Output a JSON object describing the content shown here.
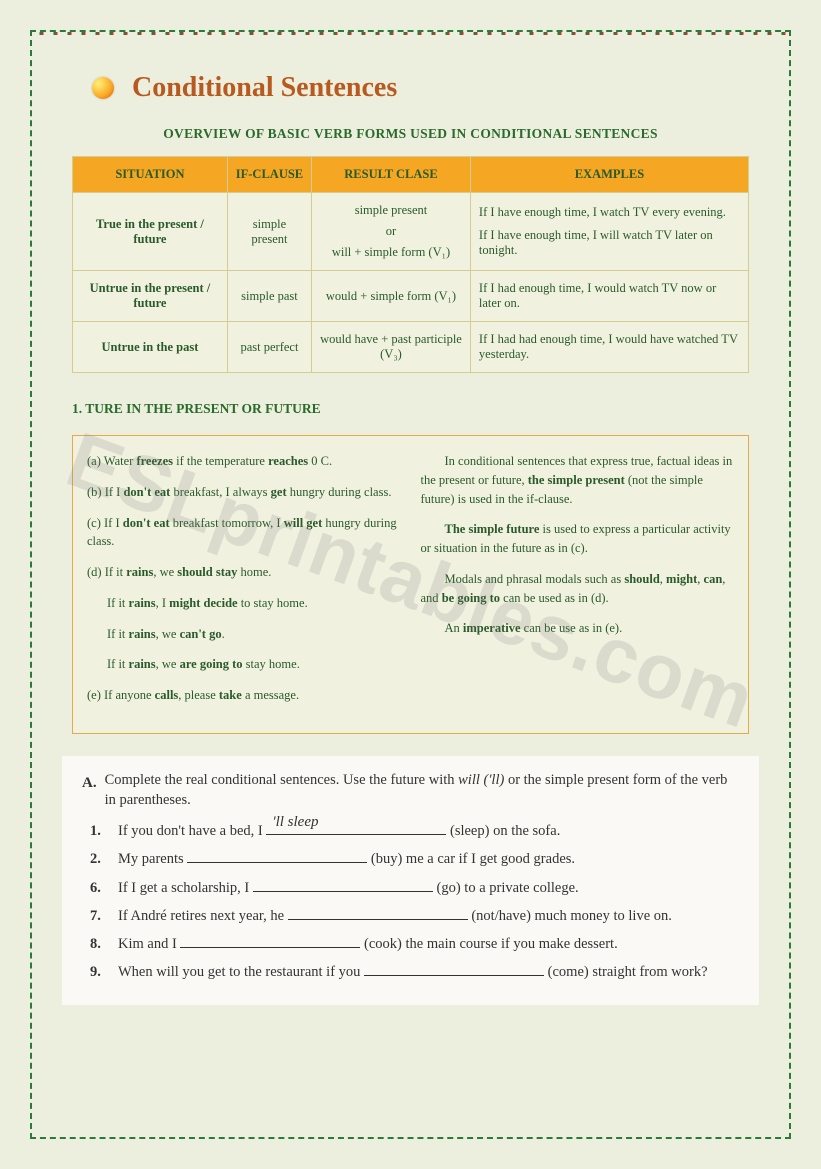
{
  "title": "Conditional Sentences",
  "subtitle": "OVERVIEW OF BASIC VERB FORMS USED IN CONDITIONAL SENTENCES",
  "watermark": "ESLprintables.com",
  "table": {
    "headers": [
      "SITUATION",
      "IF-CLAUSE",
      "RESULT CLASE",
      "EXAMPLES"
    ],
    "rows": [
      {
        "situation": "True in the present / future",
        "ifclause": "simple present",
        "result_a": "simple present",
        "result_or": "or",
        "result_b": "will + simple form (V₁)",
        "example_a": "If I have enough time, I watch TV every evening.",
        "example_b": "If I have enough time, I will watch TV later on tonight."
      },
      {
        "situation": "Untrue in the present / future",
        "ifclause": "simple past",
        "result_a": "would + simple  form (V₁)",
        "example_a": "If I had enough time, I would watch TV now or later on."
      },
      {
        "situation": "Untrue in the past",
        "ifclause": "past perfect",
        "result_a": "would have + past participle (V₃)",
        "example_a": "If I had had enough time, I would have watched TV yesterday."
      }
    ]
  },
  "section1_head": "1. TURE IN THE PRESENT OR FUTURE",
  "examples_left": {
    "a": "(a) Water <b>freezes</b> if the temperature <b>reaches</b> 0 C.",
    "b": "(b) If I <b>don't eat</b> breakfast, I always <b>get</b> hungry during class.",
    "c": "(c) If I <b>don't eat</b> breakfast tomorrow, I <b>will get</b> hungry during class.",
    "d": "(d) If it <b>rains</b>, we <b>should stay</b> home.",
    "d1": "If it <b>rains</b>, I <b>might decide</b> to stay home.",
    "d2": "If it <b>rains</b>, we <b>can't go</b>.",
    "d3": "If it <b>rains</b>, we <b>are going to</b> stay home.",
    "e": "(e) If anyone <b>calls</b>, please <b>take</b> a message."
  },
  "examples_right": {
    "p1": "In conditional sentences that express true, factual ideas in the present or future, <b>the simple present</b> (not the simple future) is used in the if-clause.",
    "p2": "<b>The simple future</b> is used to express a particular activity or situation in the future as in (c).",
    "p3": "Modals and phrasal modals such as <b>should</b>, <b>might</b>, <b>can</b>, and <b>be going to</b> can be used as in (d).",
    "p4": "An <b>imperative</b> can be use as in (e)."
  },
  "exercise": {
    "label": "A.",
    "intro": "Complete the real conditional sentences. Use the future with <i>will ('ll)</i> or the simple present form of the verb in parentheses.",
    "items": [
      {
        "num": "1.",
        "pre": "If you don't have a bed, I ",
        "fill": "'ll sleep",
        "post": " (sleep) on the sofa."
      },
      {
        "num": "2.",
        "pre": "My parents ",
        "fill": "",
        "post": " (buy) me a car if I get good grades."
      },
      {
        "num": "6.",
        "pre": "If I get a scholarship, I ",
        "fill": "",
        "post": " (go) to a private college."
      },
      {
        "num": "7.",
        "pre": "If André retires next year, he ",
        "fill": "",
        "post": " (not/have) much money to live on."
      },
      {
        "num": "8.",
        "pre": "Kim and I ",
        "fill": "",
        "post": " (cook) the main course if you make dessert."
      },
      {
        "num": "9.",
        "pre": "When will you get to the restaurant if you ",
        "fill": "",
        "post": " (come) straight from work?"
      }
    ]
  }
}
